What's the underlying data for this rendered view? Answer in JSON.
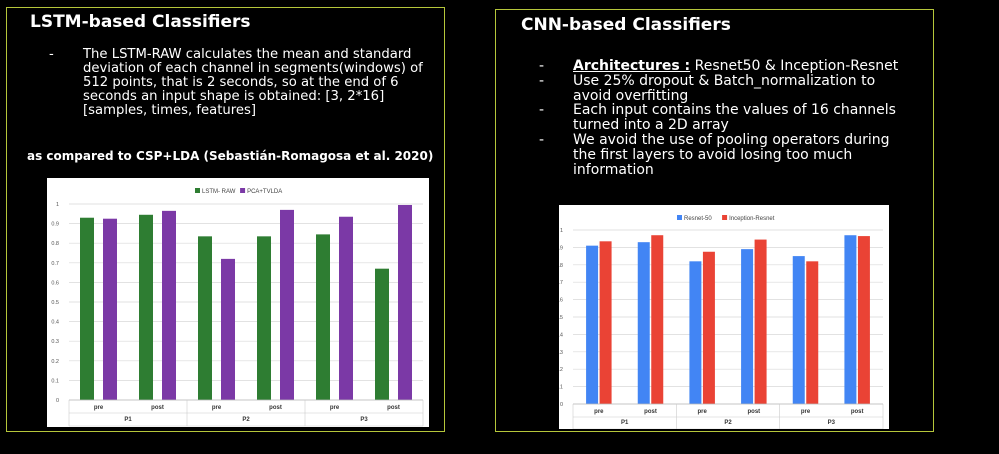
{
  "left": {
    "title": "LSTM-based Classifiers",
    "bullets": [
      {
        "dash": "-",
        "text": "The LSTM-RAW calculates the mean and standard deviation of each channel in segments(windows) of 512 points, that is 2 seconds, so at the end of 6 seconds an input shape is obtained:  [3, 2*16] [samples, times, features]"
      }
    ],
    "compare_text": "as compared to CSP+LDA (Sebastián-Romagosa et al. 2020)"
  },
  "right": {
    "title": "CNN-based Classifiers",
    "bullets": [
      {
        "dash": "-",
        "label": "Architectures :",
        "text": " Resnet50 & Inception-Resnet"
      },
      {
        "dash": "-",
        "text": "Use 25% dropout & Batch_normalization to avoid overfitting"
      },
      {
        "dash": "-",
        "text": "Each input contains the values of 16 channels turned into a 2D array"
      },
      {
        "dash": "-",
        "text": "We avoid the use of pooling operators during the first layers to avoid losing too much information"
      }
    ]
  },
  "chart_data": [
    {
      "type": "bar",
      "categories": [
        "pre",
        "post",
        "pre",
        "post",
        "pre",
        "post"
      ],
      "groups": [
        "P1",
        "P2",
        "P3"
      ],
      "series": [
        {
          "name": "LSTM- RAW",
          "color": "#2e7d32",
          "values": [
            0.93,
            0.945,
            0.835,
            0.835,
            0.845,
            0.67
          ]
        },
        {
          "name": "PCA+TVLDA",
          "color": "#7b39a6",
          "values": [
            0.925,
            0.965,
            0.72,
            0.97,
            0.935,
            0.995
          ]
        }
      ],
      "yticks": [
        "0",
        "0.1",
        "0.2",
        "0.3",
        "0.4",
        "0.5",
        "0.6",
        "0.7",
        "0.8",
        "0.9",
        "1"
      ],
      "ylim": [
        0,
        1
      ],
      "legend": "top",
      "grid": true
    },
    {
      "type": "bar",
      "categories": [
        "pre",
        "post",
        "pre",
        "post",
        "pre",
        "post"
      ],
      "groups": [
        "P1",
        "P2",
        "P3"
      ],
      "series": [
        {
          "name": "Resnet-50",
          "color": "#4285f4",
          "values": [
            0.91,
            0.93,
            0.82,
            0.89,
            0.85,
            0.97
          ]
        },
        {
          "name": "Inception-Resnet",
          "color": "#ea4335",
          "values": [
            0.935,
            0.97,
            0.875,
            0.945,
            0.82,
            0.965
          ]
        }
      ],
      "yticks": [
        "0",
        "0.1",
        "0.2",
        "0.3",
        "0.4",
        "0.5",
        "0.6",
        "0.7",
        "0.8",
        "0.9",
        "1"
      ],
      "ylim": [
        0,
        1
      ],
      "legend": "top",
      "grid": true
    }
  ]
}
